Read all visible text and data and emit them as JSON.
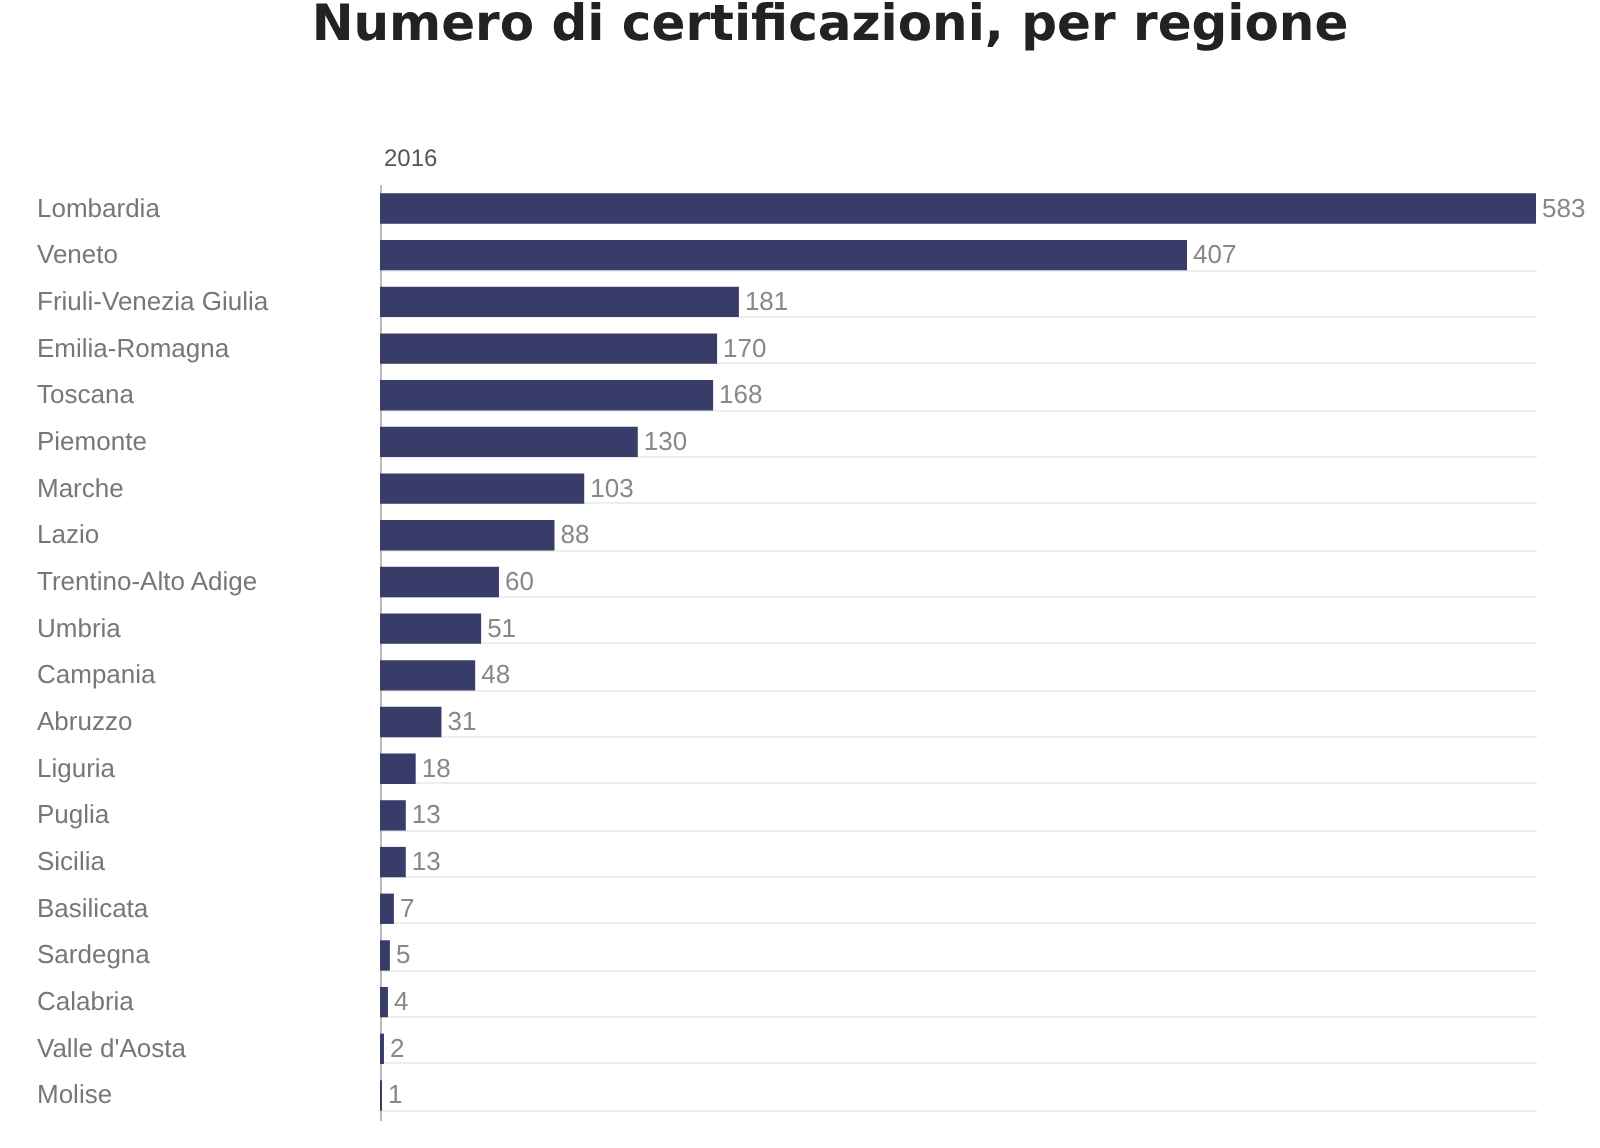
{
  "chart_data": {
    "type": "bar",
    "orientation": "horizontal",
    "title": "Numero di certificazioni, per regione",
    "categories": [
      "Lombardia",
      "Veneto",
      "Friuli-Venezia Giulia",
      "Emilia-Romagna",
      "Toscana",
      "Piemonte",
      "Marche",
      "Lazio",
      "Trentino-Alto Adige",
      "Umbria",
      "Campania",
      "Abruzzo",
      "Liguria",
      "Puglia",
      "Sicilia",
      "Basilicata",
      "Sardegna",
      "Calabria",
      "Valle d'Aosta",
      "Molise"
    ],
    "series": [
      {
        "name": "2016",
        "color": "#383c68",
        "values": [
          583,
          407,
          181,
          170,
          168,
          130,
          103,
          88,
          60,
          51,
          48,
          31,
          18,
          13,
          13,
          7,
          5,
          4,
          2,
          1
        ]
      }
    ],
    "data_labels": true,
    "grid": "y"
  }
}
